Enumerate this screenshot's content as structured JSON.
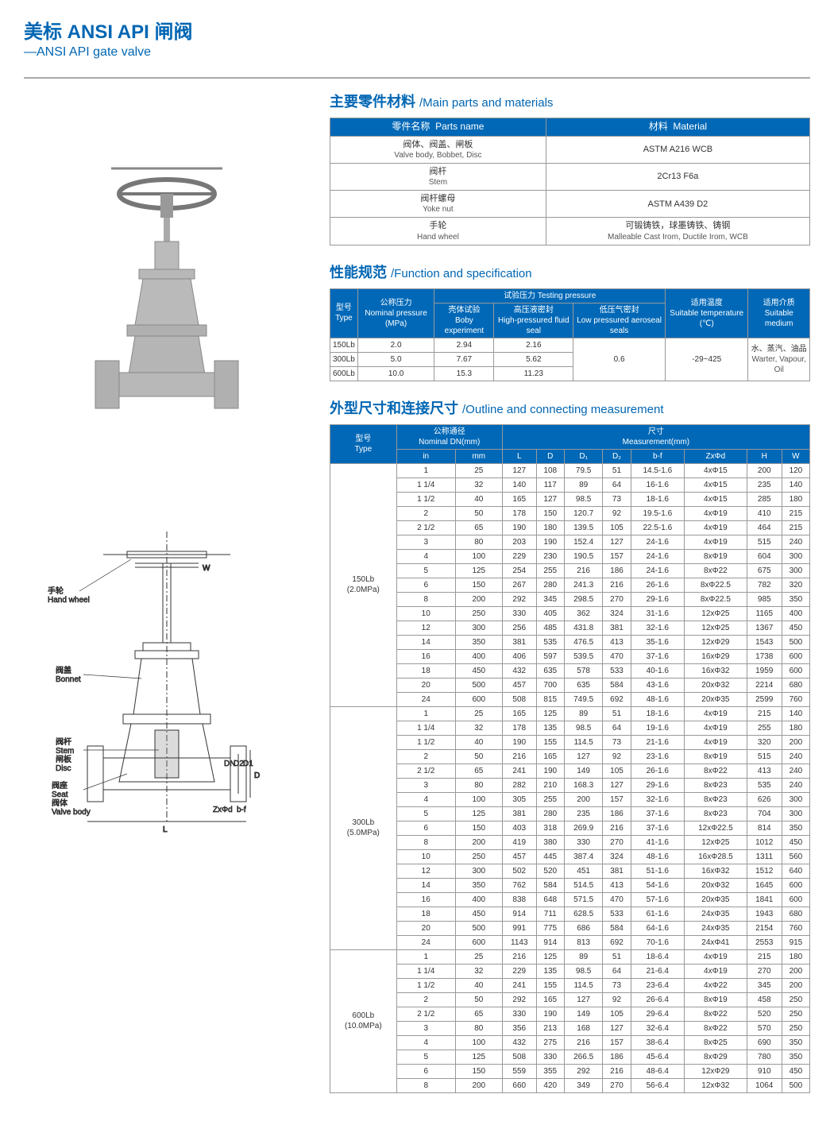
{
  "header": {
    "title_cn": "美标 ANSI API 闸阀",
    "title_en": "—ANSI API gate valve"
  },
  "parts_section": {
    "title_cn": "主要零件材料",
    "title_en": "/Main parts and materials",
    "header_name_cn": "零件名称",
    "header_name_en": "Parts name",
    "header_mat_cn": "材料",
    "header_mat_en": "Material",
    "rows": [
      {
        "name_cn": "阀体、阀盖、闸板",
        "name_en": "Valve body, Bobbet, Disc",
        "mat": "ASTM  A216  WCB"
      },
      {
        "name_cn": "阀杆",
        "name_en": "Stem",
        "mat": "2Cr13  F6a"
      },
      {
        "name_cn": "阀杆螺母",
        "name_en": "Yoke nut",
        "mat": "ASTM  A439  D2"
      },
      {
        "name_cn": "手轮",
        "name_en": "Hand wheel",
        "mat_cn": "可锻铸铁，球墨铸铁、铸钢",
        "mat_en": "Malleable Cast Irom, Ductile Irom, WCB"
      }
    ]
  },
  "spec_section": {
    "title_cn": "性能规范",
    "title_en": "/Function and specification",
    "h_type_cn": "型号",
    "h_type_en": "Type",
    "h_nom_cn": "公称压力",
    "h_nom_en": "Nominal pressure (MPa)",
    "h_test_cn": "试验压力",
    "h_test_en": "Testing pressure",
    "h_boby_cn": "壳体试验",
    "h_boby_en": "Boby experiment",
    "h_hp_cn": "高压液密封",
    "h_hp_en": "High-pressured fluid seal",
    "h_lp_cn": "低压气密封",
    "h_lp_en": "Low pressured aeroseal seals",
    "h_temp_cn": "适用温度",
    "h_temp_en": "Suitable temperature (℃)",
    "h_med_cn": "适用介质",
    "h_med_en": "Suitable medium",
    "rows": [
      {
        "type": "150Lb",
        "nom": "2.0",
        "boby": "2.94",
        "hp": "2.16"
      },
      {
        "type": "300Lb",
        "nom": "5.0",
        "boby": "7.67",
        "hp": "5.62"
      },
      {
        "type": "600Lb",
        "nom": "10.0",
        "boby": "15.3",
        "hp": "11.23"
      }
    ],
    "lp_val": "0.6",
    "temp_val": "-29~425",
    "med_cn": "水、蒸汽、油品",
    "med_en": "Warter, Vapour, Oil"
  },
  "dim_section": {
    "title_cn": "外型尺寸和连接尺寸",
    "title_en": "/Outline and connecting measurement",
    "h_type_cn": "型号",
    "h_type_en": "Type",
    "h_dn_cn": "公称通径",
    "h_dn_en": "Nominal DN(mm)",
    "h_meas_cn": "尺寸",
    "h_meas_en": "Measurement(mm)",
    "cols": [
      "in",
      "mm",
      "L",
      "D",
      "D₁",
      "D₂",
      "b-f",
      "ZxΦd",
      "H",
      "W"
    ],
    "groups": [
      {
        "type": "150Lb (2.0MPa)",
        "rows": [
          [
            "1",
            "25",
            "127",
            "108",
            "79.5",
            "51",
            "14.5-1.6",
            "4xΦ15",
            "200",
            "120"
          ],
          [
            "1 1/4",
            "32",
            "140",
            "117",
            "89",
            "64",
            "16-1.6",
            "4xΦ15",
            "235",
            "140"
          ],
          [
            "1 1/2",
            "40",
            "165",
            "127",
            "98.5",
            "73",
            "18-1.6",
            "4xΦ15",
            "285",
            "180"
          ],
          [
            "2",
            "50",
            "178",
            "150",
            "120.7",
            "92",
            "19.5-1.6",
            "4xΦ19",
            "410",
            "215"
          ],
          [
            "2 1/2",
            "65",
            "190",
            "180",
            "139.5",
            "105",
            "22.5-1.6",
            "4xΦ19",
            "464",
            "215"
          ],
          [
            "3",
            "80",
            "203",
            "190",
            "152.4",
            "127",
            "24-1.6",
            "4xΦ19",
            "515",
            "240"
          ],
          [
            "4",
            "100",
            "229",
            "230",
            "190.5",
            "157",
            "24-1.6",
            "8xΦ19",
            "604",
            "300"
          ],
          [
            "5",
            "125",
            "254",
            "255",
            "216",
            "186",
            "24-1.6",
            "8xΦ22",
            "675",
            "300"
          ],
          [
            "6",
            "150",
            "267",
            "280",
            "241.3",
            "216",
            "26-1.6",
            "8xΦ22.5",
            "782",
            "320"
          ],
          [
            "8",
            "200",
            "292",
            "345",
            "298.5",
            "270",
            "29-1.6",
            "8xΦ22.5",
            "985",
            "350"
          ],
          [
            "10",
            "250",
            "330",
            "405",
            "362",
            "324",
            "31-1.6",
            "12xΦ25",
            "1165",
            "400"
          ],
          [
            "12",
            "300",
            "256",
            "485",
            "431.8",
            "381",
            "32-1.6",
            "12xΦ25",
            "1367",
            "450"
          ],
          [
            "14",
            "350",
            "381",
            "535",
            "476.5",
            "413",
            "35-1.6",
            "12xΦ29",
            "1543",
            "500"
          ],
          [
            "16",
            "400",
            "406",
            "597",
            "539.5",
            "470",
            "37-1.6",
            "16xΦ29",
            "1738",
            "600"
          ],
          [
            "18",
            "450",
            "432",
            "635",
            "578",
            "533",
            "40-1.6",
            "16xΦ32",
            "1959",
            "600"
          ],
          [
            "20",
            "500",
            "457",
            "700",
            "635",
            "584",
            "43-1.6",
            "20xΦ32",
            "2214",
            "680"
          ],
          [
            "24",
            "600",
            "508",
            "815",
            "749.5",
            "692",
            "48-1.6",
            "20xΦ35",
            "2599",
            "760"
          ]
        ]
      },
      {
        "type": "300Lb (5.0MPa)",
        "rows": [
          [
            "1",
            "25",
            "165",
            "125",
            "89",
            "51",
            "18-1.6",
            "4xΦ19",
            "215",
            "140"
          ],
          [
            "1 1/4",
            "32",
            "178",
            "135",
            "98.5",
            "64",
            "19-1.6",
            "4xΦ19",
            "255",
            "180"
          ],
          [
            "1 1/2",
            "40",
            "190",
            "155",
            "114.5",
            "73",
            "21-1.6",
            "4xΦ19",
            "320",
            "200"
          ],
          [
            "2",
            "50",
            "216",
            "165",
            "127",
            "92",
            "23-1.6",
            "8xΦ19",
            "515",
            "240"
          ],
          [
            "2 1/2",
            "65",
            "241",
            "190",
            "149",
            "105",
            "26-1.6",
            "8xΦ22",
            "413",
            "240"
          ],
          [
            "3",
            "80",
            "282",
            "210",
            "168.3",
            "127",
            "29-1.6",
            "8xΦ23",
            "535",
            "240"
          ],
          [
            "4",
            "100",
            "305",
            "255",
            "200",
            "157",
            "32-1.6",
            "8xΦ23",
            "626",
            "300"
          ],
          [
            "5",
            "125",
            "381",
            "280",
            "235",
            "186",
            "37-1.6",
            "8xΦ23",
            "704",
            "300"
          ],
          [
            "6",
            "150",
            "403",
            "318",
            "269.9",
            "216",
            "37-1.6",
            "12xΦ22.5",
            "814",
            "350"
          ],
          [
            "8",
            "200",
            "419",
            "380",
            "330",
            "270",
            "41-1.6",
            "12xΦ25",
            "1012",
            "450"
          ],
          [
            "10",
            "250",
            "457",
            "445",
            "387.4",
            "324",
            "48-1.6",
            "16xΦ28.5",
            "1311",
            "560"
          ],
          [
            "12",
            "300",
            "502",
            "520",
            "451",
            "381",
            "51-1.6",
            "16xΦ32",
            "1512",
            "640"
          ],
          [
            "14",
            "350",
            "762",
            "584",
            "514.5",
            "413",
            "54-1.6",
            "20xΦ32",
            "1645",
            "600"
          ],
          [
            "16",
            "400",
            "838",
            "648",
            "571.5",
            "470",
            "57-1.6",
            "20xΦ35",
            "1841",
            "600"
          ],
          [
            "18",
            "450",
            "914",
            "711",
            "628.5",
            "533",
            "61-1.6",
            "24xΦ35",
            "1943",
            "680"
          ],
          [
            "20",
            "500",
            "991",
            "775",
            "686",
            "584",
            "64-1.6",
            "24xΦ35",
            "2154",
            "760"
          ],
          [
            "24",
            "600",
            "1143",
            "914",
            "813",
            "692",
            "70-1.6",
            "24xΦ41",
            "2553",
            "915"
          ]
        ]
      },
      {
        "type": "600Lb (10.0MPa)",
        "rows": [
          [
            "1",
            "25",
            "216",
            "125",
            "89",
            "51",
            "18-6.4",
            "4xΦ19",
            "215",
            "180"
          ],
          [
            "1 1/4",
            "32",
            "229",
            "135",
            "98.5",
            "64",
            "21-6.4",
            "4xΦ19",
            "270",
            "200"
          ],
          [
            "1 1/2",
            "40",
            "241",
            "155",
            "114.5",
            "73",
            "23-6.4",
            "4xΦ22",
            "345",
            "200"
          ],
          [
            "2",
            "50",
            "292",
            "165",
            "127",
            "92",
            "26-6.4",
            "8xΦ19",
            "458",
            "250"
          ],
          [
            "2 1/2",
            "65",
            "330",
            "190",
            "149",
            "105",
            "29-6.4",
            "8xΦ22",
            "520",
            "250"
          ],
          [
            "3",
            "80",
            "356",
            "213",
            "168",
            "127",
            "32-6.4",
            "8xΦ22",
            "570",
            "250"
          ],
          [
            "4",
            "100",
            "432",
            "275",
            "216",
            "157",
            "38-6.4",
            "8xΦ25",
            "690",
            "350"
          ],
          [
            "5",
            "125",
            "508",
            "330",
            "266.5",
            "186",
            "45-6.4",
            "8xΦ29",
            "780",
            "350"
          ],
          [
            "6",
            "150",
            "559",
            "355",
            "292",
            "216",
            "48-6.4",
            "12xΦ29",
            "910",
            "450"
          ],
          [
            "8",
            "200",
            "660",
            "420",
            "349",
            "270",
            "56-6.4",
            "12xΦ32",
            "1064",
            "500"
          ]
        ]
      }
    ]
  },
  "diagram_labels": {
    "handwheel_cn": "手轮",
    "handwheel_en": "Hand wheel",
    "bonnet_cn": "阀盖",
    "bonnet_en": "Bonnet",
    "stem_cn": "阀杆",
    "stem_en": "Stem",
    "disc_cn": "闸板",
    "disc_en": "Disc",
    "seat_cn": "阀座",
    "seat_en": "Seat",
    "body_cn": "阀体",
    "body_en": "Valve body",
    "W": "W",
    "H": "H",
    "L": "L",
    "D": "D",
    "D1": "D1",
    "D2": "D2",
    "DN": "DN",
    "bf": "b-f",
    "Zxd": "ZxΦd"
  },
  "colors": {
    "brand": "#0066b3",
    "th_bg": "#0068b7",
    "border": "#999"
  }
}
